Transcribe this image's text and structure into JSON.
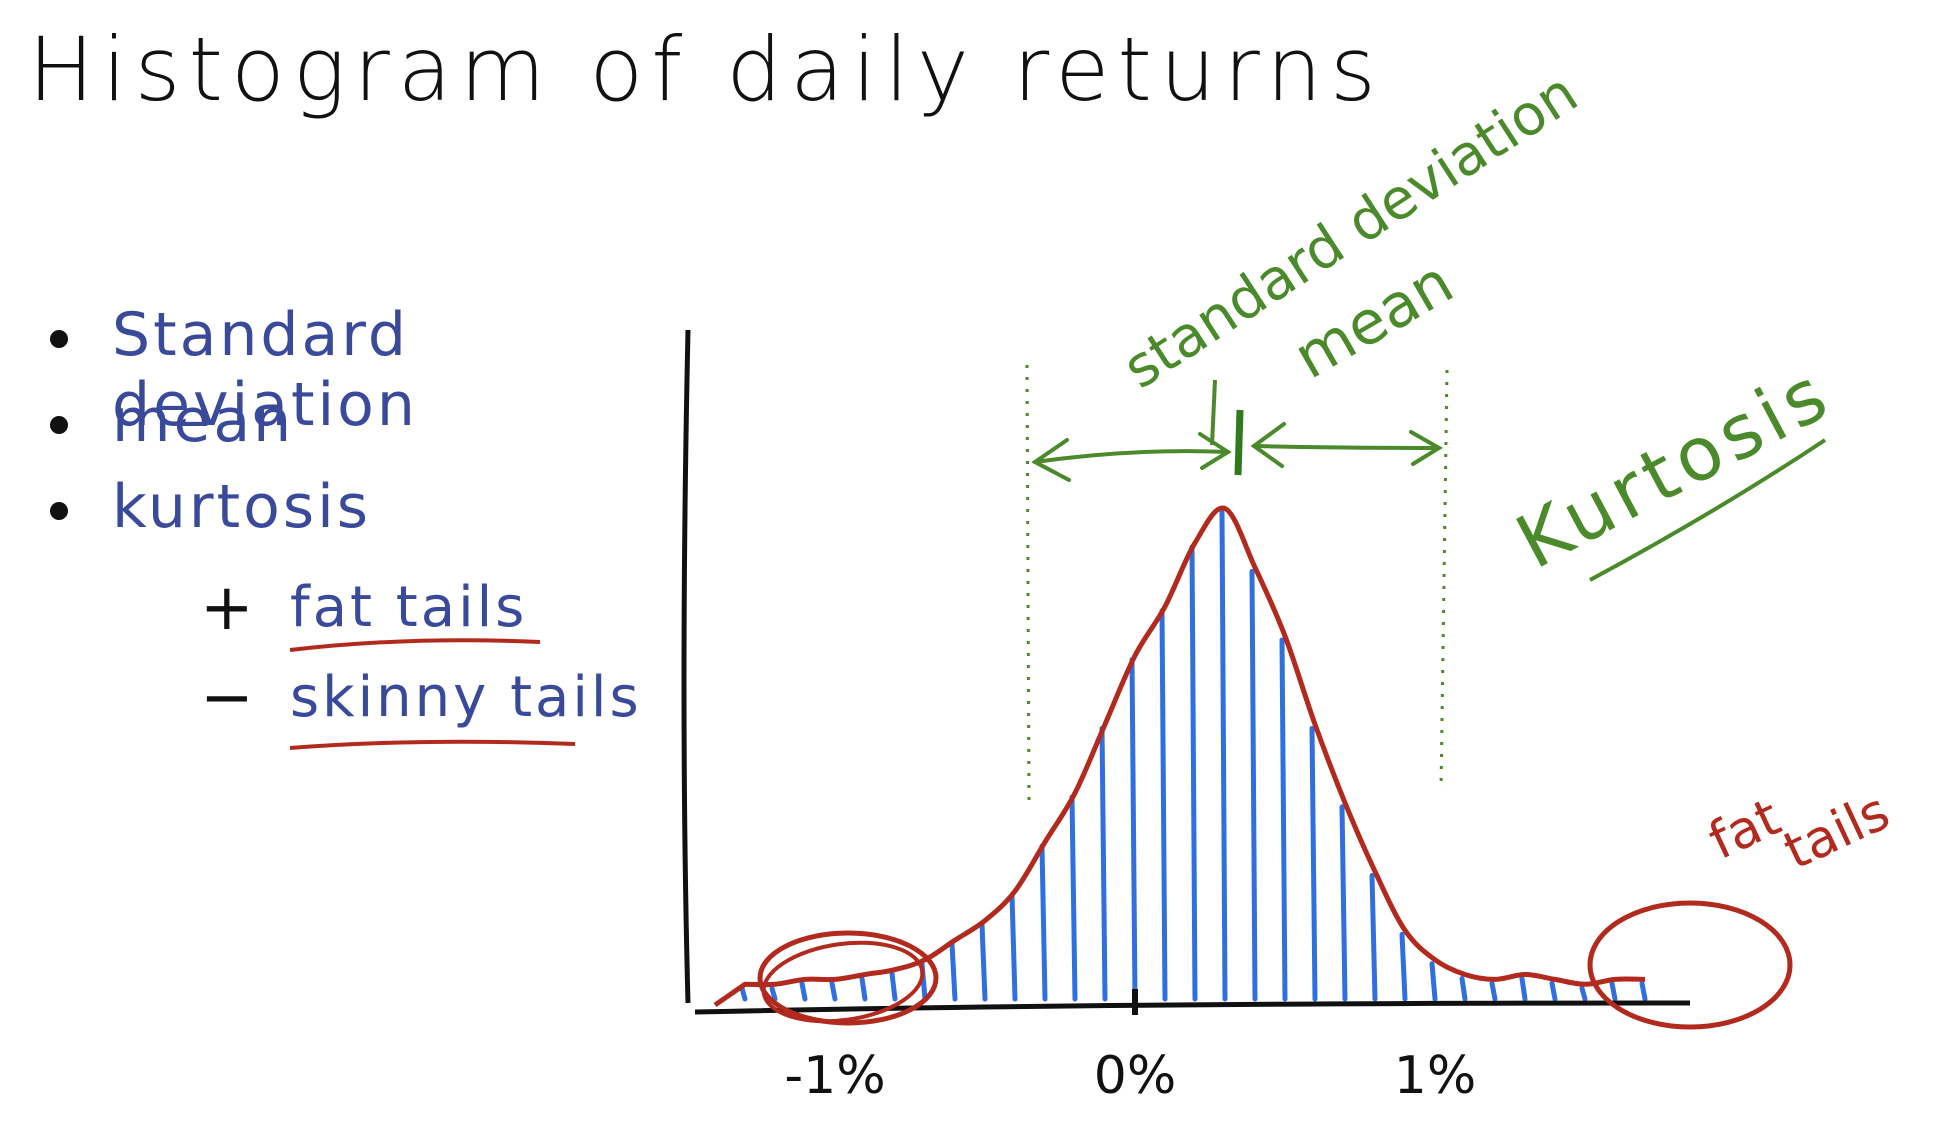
{
  "title": "Histogram of daily returns",
  "bullets": [
    {
      "sign": "•",
      "label": "Standard deviation"
    },
    {
      "sign": "•",
      "label": "mean"
    },
    {
      "sign": "•",
      "label": "kurtosis"
    }
  ],
  "sub_bullets": [
    {
      "sign": "+",
      "label": "fat tails"
    },
    {
      "sign": "−",
      "label": "skinny tails"
    }
  ],
  "annotations": {
    "standard_deviation": "standard deviation",
    "mean": "mean",
    "kurtosis": "Kurtosis",
    "fat_tails_1": "fat",
    "fat_tails_2": "tails"
  },
  "colors": {
    "ink": "#111111",
    "bars": "#2f6fe0",
    "curve": "#b22a1e",
    "green": "#4a8a2a",
    "bullet_text": "#3a4a9a"
  },
  "chart_data": {
    "type": "bar",
    "title": "Histogram of daily returns",
    "xlabel": "",
    "ylabel": "",
    "x_ticks": [
      "-1%",
      "0%",
      "1%"
    ],
    "x_tick_values": [
      -1,
      0,
      1
    ],
    "xlim": [
      -1.45,
      1.85
    ],
    "ylim": [
      0,
      1.05
    ],
    "bins_x": [
      -1.3,
      -1.2,
      -1.1,
      -1.0,
      -0.9,
      -0.8,
      -0.7,
      -0.6,
      -0.5,
      -0.4,
      -0.3,
      -0.2,
      -0.1,
      0.0,
      0.1,
      0.2,
      0.3,
      0.4,
      0.5,
      0.6,
      0.7,
      0.8,
      0.9,
      1.0,
      1.1,
      1.2,
      1.3,
      1.4,
      1.5,
      1.6,
      1.7
    ],
    "values": [
      0.03,
      0.03,
      0.04,
      0.04,
      0.05,
      0.06,
      0.08,
      0.12,
      0.16,
      0.22,
      0.32,
      0.42,
      0.56,
      0.7,
      0.8,
      0.93,
      1.0,
      0.88,
      0.74,
      0.56,
      0.4,
      0.26,
      0.14,
      0.08,
      0.05,
      0.04,
      0.05,
      0.04,
      0.03,
      0.04,
      0.04
    ],
    "mean_x": 0.35,
    "std_left_x": -0.36,
    "std_right_x": 1.04
  }
}
